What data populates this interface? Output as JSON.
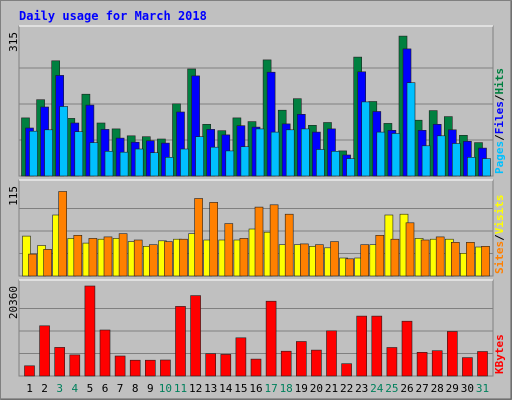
{
  "chart_data": [
    {
      "type": "bar",
      "title": "Daily usage for March 2018",
      "categories": [
        "1",
        "2",
        "3",
        "4",
        "5",
        "6",
        "7",
        "8",
        "9",
        "10",
        "11",
        "12",
        "13",
        "14",
        "15",
        "16",
        "17",
        "18",
        "19",
        "20",
        "21",
        "22",
        "23",
        "24",
        "25",
        "26",
        "27",
        "28",
        "29",
        "30",
        "31"
      ],
      "weekend_days": [
        "3",
        "4",
        "10",
        "11",
        "17",
        "18",
        "24",
        "25",
        "31"
      ],
      "ymax_label": "315",
      "right_label": [
        "Pages",
        "/",
        "Files",
        "/",
        "Hits"
      ],
      "series": [
        {
          "name": "Hits",
          "color": "#008040",
          "values": [
            127,
            167,
            252,
            126,
            179,
            116,
            103,
            88,
            86,
            81,
            158,
            234,
            113,
            99,
            127,
            119,
            254,
            144,
            169,
            111,
            117,
            55,
            260,
            163,
            115,
            306,
            122,
            143,
            130,
            89,
            73
          ]
        },
        {
          "name": "Files",
          "color": "#0000ff",
          "values": [
            105,
            151,
            220,
            116,
            155,
            102,
            83,
            74,
            77,
            72,
            140,
            219,
            102,
            90,
            110,
            107,
            227,
            114,
            135,
            96,
            103,
            46,
            228,
            141,
            100,
            278,
            100,
            113,
            101,
            76,
            61
          ]
        },
        {
          "name": "Pages",
          "color": "#00c0ff",
          "values": [
            98,
            101,
            152,
            97,
            73,
            54,
            52,
            59,
            51,
            41,
            59,
            86,
            63,
            55,
            64,
            103,
            96,
            101,
            103,
            58,
            54,
            38,
            162,
            96,
            93,
            204,
            66,
            88,
            71,
            41,
            38
          ]
        }
      ]
    },
    {
      "type": "bar",
      "ymax_label": "115",
      "right_label": [
        "Sites",
        "/",
        "Visits"
      ],
      "categories": [
        "1",
        "2",
        "3",
        "4",
        "5",
        "6",
        "7",
        "8",
        "9",
        "10",
        "11",
        "12",
        "13",
        "14",
        "15",
        "16",
        "17",
        "18",
        "19",
        "20",
        "21",
        "22",
        "23",
        "24",
        "25",
        "26",
        "27",
        "28",
        "29",
        "30",
        "31"
      ],
      "series": [
        {
          "name": "Visits",
          "color": "#ffff00",
          "values": [
            51,
            39,
            78,
            48,
            42,
            47,
            48,
            44,
            38,
            45,
            47,
            54,
            46,
            46,
            46,
            60,
            56,
            40,
            40,
            38,
            36,
            23,
            23,
            40,
            78,
            79,
            48,
            47,
            47,
            29,
            37
          ]
        },
        {
          "name": "Sites",
          "color": "#ff8000",
          "values": [
            28,
            34,
            108,
            52,
            48,
            50,
            54,
            46,
            40,
            44,
            47,
            99,
            94,
            67,
            48,
            88,
            91,
            79,
            41,
            40,
            44,
            22,
            40,
            52,
            47,
            68,
            46,
            50,
            43,
            43,
            38
          ]
        }
      ]
    },
    {
      "type": "bar",
      "ymax_label": "20360",
      "right_label": [
        "KBytes"
      ],
      "categories": [
        "1",
        "2",
        "3",
        "4",
        "5",
        "6",
        "7",
        "8",
        "9",
        "10",
        "11",
        "12",
        "13",
        "14",
        "15",
        "16",
        "17",
        "18",
        "19",
        "20",
        "21",
        "22",
        "23",
        "24",
        "25",
        "26",
        "27",
        "28",
        "29",
        "30",
        "31"
      ],
      "series": [
        {
          "name": "KBytes",
          "color": "#ff0000",
          "values": [
            2310,
            11360,
            6470,
            4780,
            20360,
            10400,
            4520,
            3580,
            3580,
            3620,
            15750,
            18180,
            5040,
            4890,
            8650,
            3830,
            16920,
            5600,
            7810,
            5860,
            10230,
            2780,
            13560,
            13560,
            6440,
            12390,
            5370,
            5730,
            10060,
            4160,
            5540
          ]
        }
      ]
    }
  ],
  "colors": {
    "background": "#c0c0c0",
    "panel": "#c0c0c0",
    "grid": "#808080",
    "title": "#0000ff",
    "axis_label": "#000000",
    "weekday_label": "#000000",
    "weekend_label": "#00805c",
    "bar_shadow": "#202020"
  }
}
